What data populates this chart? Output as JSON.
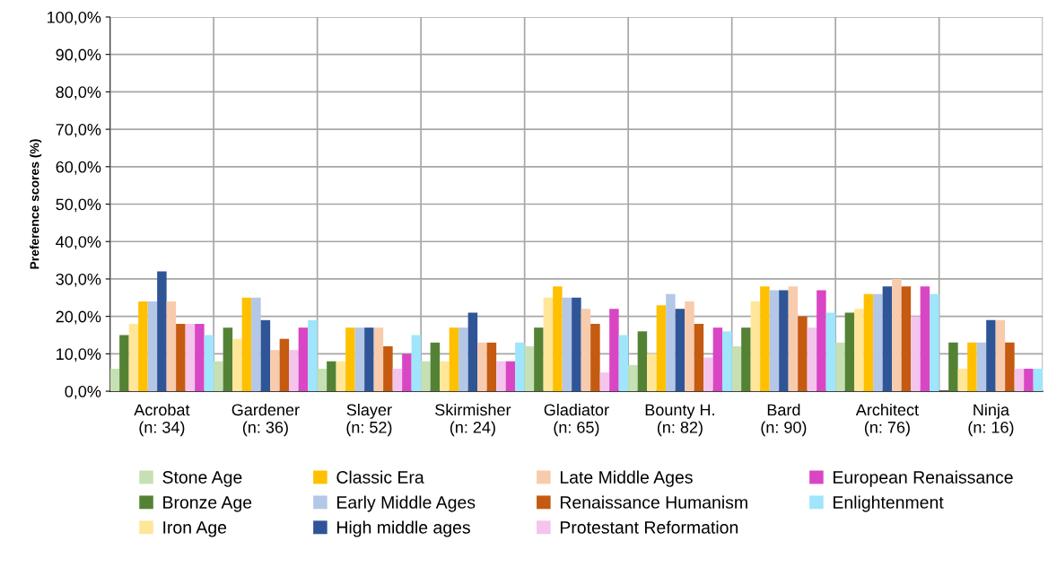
{
  "chart_data": {
    "type": "bar",
    "ylabel": "Preference scores (%)",
    "categories": [
      "Acrobat\n(n: 34)",
      "Gardener\n(n: 36)",
      "Slayer\n(n: 52)",
      "Skirmisher\n(n: 24)",
      "Gladiator\n(n: 65)",
      "Bounty H.\n(n: 82)",
      "Bard\n(n: 90)",
      "Architect\n(n: 76)",
      "Ninja\n(n: 16)"
    ],
    "series": [
      {
        "name": "Stone Age",
        "color": "#c6e0b4",
        "values": [
          6,
          8,
          6,
          8,
          12,
          7,
          12,
          13,
          0
        ]
      },
      {
        "name": "Bronze Age",
        "color": "#548235",
        "values": [
          15,
          17,
          8,
          13,
          17,
          16,
          17,
          21,
          13
        ]
      },
      {
        "name": "Iron Age",
        "color": "#ffe699",
        "values": [
          18,
          14,
          8,
          8,
          25,
          10,
          24,
          22,
          6
        ]
      },
      {
        "name": "Classic Era",
        "color": "#ffc000",
        "values": [
          24,
          25,
          17,
          17,
          28,
          23,
          28,
          26,
          13
        ]
      },
      {
        "name": "Early Middle Ages",
        "color": "#b4c7e7",
        "values": [
          24,
          25,
          17,
          17,
          25,
          26,
          27,
          26,
          13
        ]
      },
      {
        "name": "High middle ages",
        "color": "#2f5597",
        "values": [
          32,
          19,
          17,
          21,
          25,
          22,
          27,
          28,
          19
        ]
      },
      {
        "name": "Late Middle Ages",
        "color": "#f8cbad",
        "values": [
          24,
          11,
          17,
          13,
          22,
          24,
          28,
          30,
          19
        ]
      },
      {
        "name": "Renaissance Humanism",
        "color": "#c55a11",
        "values": [
          18,
          14,
          12,
          13,
          18,
          18,
          20,
          28,
          13
        ]
      },
      {
        "name": "Protestant Reformation",
        "color": "#f4c4ec",
        "values": [
          18,
          11,
          6,
          8,
          5,
          9,
          17,
          20,
          6
        ]
      },
      {
        "name": "European Renaissance",
        "color": "#d946c4",
        "values": [
          18,
          17,
          10,
          8,
          22,
          17,
          27,
          28,
          6
        ]
      },
      {
        "name": "Enlightenment",
        "color": "#9fe5fb",
        "values": [
          15,
          19,
          15,
          13,
          15,
          16,
          21,
          26,
          6
        ]
      }
    ],
    "ylim": [
      0,
      100
    ],
    "yticks": [
      {
        "value": 0,
        "label": "0,0%"
      },
      {
        "value": 10,
        "label": "10,0%"
      },
      {
        "value": 20,
        "label": "20,0%"
      },
      {
        "value": 30,
        "label": "30,0%"
      },
      {
        "value": 40,
        "label": "40,0%"
      },
      {
        "value": 50,
        "label": "50,0%"
      },
      {
        "value": 60,
        "label": "60,0%"
      },
      {
        "value": 70,
        "label": "70,0%"
      },
      {
        "value": 80,
        "label": "80,0%"
      },
      {
        "value": 90,
        "label": "90,0%"
      },
      {
        "value": 100,
        "label": "100,0%"
      }
    ],
    "grid": true,
    "legend": "bottom"
  }
}
